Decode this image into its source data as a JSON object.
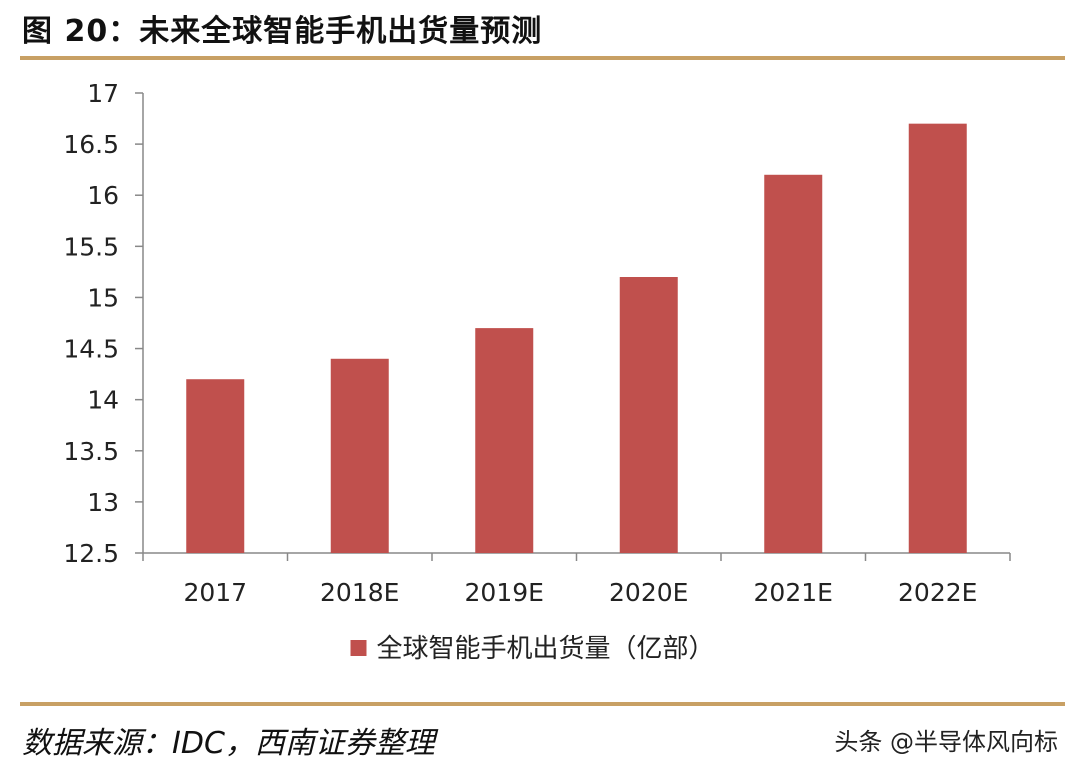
{
  "figure": {
    "title": "图 20：未来全球智能手机出货量预测"
  },
  "chart_data": {
    "type": "bar",
    "categories": [
      "2017",
      "2018E",
      "2019E",
      "2020E",
      "2021E",
      "2022E"
    ],
    "series": [
      {
        "name": "全球智能手机出货量（亿部）",
        "values": [
          14.2,
          14.4,
          14.7,
          15.2,
          16.2,
          16.7
        ],
        "color": "#c0504d"
      }
    ],
    "ylim": [
      12.5,
      17
    ],
    "yticks": [
      "12.5",
      "13",
      "13.5",
      "14",
      "14.5",
      "15",
      "15.5",
      "16",
      "16.5",
      "17"
    ],
    "grid": false,
    "legend_position": "bottom-center",
    "xlabel": "",
    "ylabel": ""
  },
  "footer": {
    "source": "数据来源：IDC，西南证券整理",
    "watermark": "头条 @半导体风向标"
  }
}
